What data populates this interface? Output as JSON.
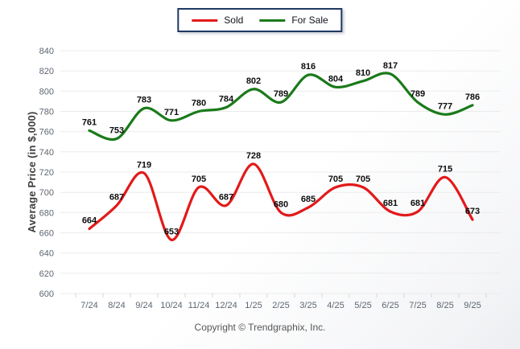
{
  "chart_data": {
    "type": "line",
    "categories": [
      "7/24",
      "8/24",
      "9/24",
      "10/24",
      "11/24",
      "12/24",
      "1/25",
      "2/25",
      "3/25",
      "4/25",
      "5/25",
      "6/25",
      "7/25",
      "8/25",
      "9/25"
    ],
    "series": [
      {
        "name": "Sold",
        "color": "#e21a1a",
        "values": [
          664,
          687,
          719,
          653,
          705,
          687,
          728,
          680,
          685,
          705,
          705,
          681,
          681,
          715,
          673
        ]
      },
      {
        "name": "For Sale",
        "color": "#1a7a1a",
        "values": [
          761,
          753,
          783,
          771,
          780,
          784,
          802,
          789,
          816,
          804,
          810,
          817,
          789,
          777,
          786
        ]
      }
    ],
    "xlabel": "",
    "ylabel": "Average Price (in $,000)",
    "ylim": [
      600,
      840
    ],
    "ytick_step": 20,
    "grid": true,
    "legend_position": "top-center",
    "line_style": "smooth"
  },
  "legend": {
    "border_color": "#1f3864"
  },
  "footer": {
    "copyright": "Copyright © Trendgraphix, Inc."
  }
}
